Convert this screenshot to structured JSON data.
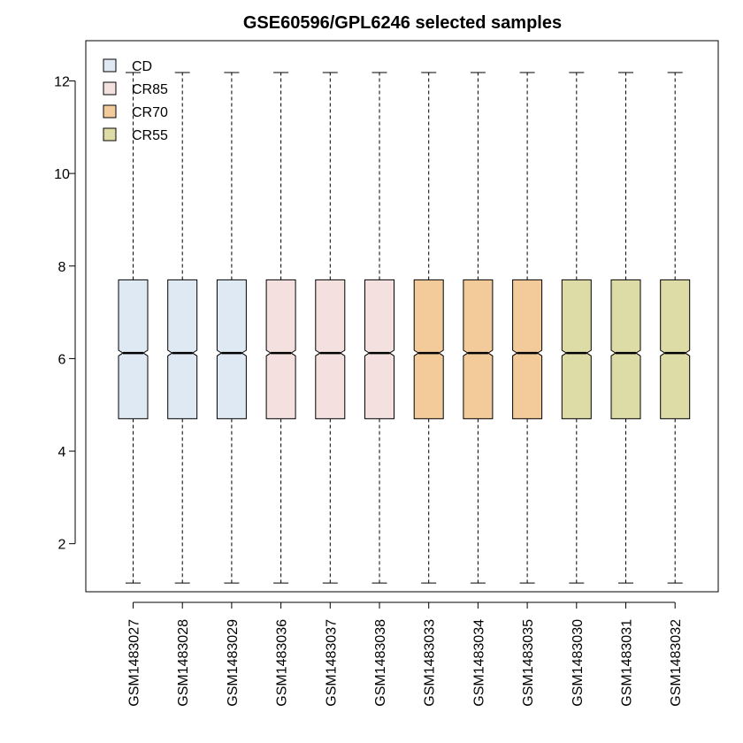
{
  "chart_data": {
    "type": "boxplot",
    "title": "GSE60596/GPL6246 selected samples",
    "xlabel": "",
    "ylabel": "",
    "ylim": [
      0.7,
      12.6
    ],
    "yticks": [
      2,
      4,
      6,
      8,
      10,
      12
    ],
    "notched": true,
    "grid": false,
    "legend_position": "top-left",
    "groups": [
      {
        "name": "CD",
        "color": "#DFE9F3"
      },
      {
        "name": "CR85",
        "color": "#F3E0DF"
      },
      {
        "name": "CR70",
        "color": "#F3CB9B"
      },
      {
        "name": "CR55",
        "color": "#DDDBA6"
      }
    ],
    "samples": [
      {
        "name": "GSM1483027",
        "group": "CD",
        "min": 1.15,
        "q1": 4.7,
        "median": 6.12,
        "q3": 7.7,
        "max": 12.18
      },
      {
        "name": "GSM1483028",
        "group": "CD",
        "min": 1.15,
        "q1": 4.7,
        "median": 6.12,
        "q3": 7.7,
        "max": 12.18
      },
      {
        "name": "GSM1483029",
        "group": "CD",
        "min": 1.15,
        "q1": 4.7,
        "median": 6.12,
        "q3": 7.7,
        "max": 12.18
      },
      {
        "name": "GSM1483036",
        "group": "CR85",
        "min": 1.15,
        "q1": 4.7,
        "median": 6.12,
        "q3": 7.7,
        "max": 12.18
      },
      {
        "name": "GSM1483037",
        "group": "CR85",
        "min": 1.15,
        "q1": 4.7,
        "median": 6.12,
        "q3": 7.7,
        "max": 12.18
      },
      {
        "name": "GSM1483038",
        "group": "CR85",
        "min": 1.15,
        "q1": 4.7,
        "median": 6.12,
        "q3": 7.7,
        "max": 12.18
      },
      {
        "name": "GSM1483033",
        "group": "CR70",
        "min": 1.15,
        "q1": 4.7,
        "median": 6.12,
        "q3": 7.7,
        "max": 12.18
      },
      {
        "name": "GSM1483034",
        "group": "CR70",
        "min": 1.15,
        "q1": 4.7,
        "median": 6.12,
        "q3": 7.7,
        "max": 12.18
      },
      {
        "name": "GSM1483035",
        "group": "CR70",
        "min": 1.15,
        "q1": 4.7,
        "median": 6.12,
        "q3": 7.7,
        "max": 12.18
      },
      {
        "name": "GSM1483030",
        "group": "CR55",
        "min": 1.15,
        "q1": 4.7,
        "median": 6.12,
        "q3": 7.7,
        "max": 12.18
      },
      {
        "name": "GSM1483031",
        "group": "CR55",
        "min": 1.15,
        "q1": 4.7,
        "median": 6.12,
        "q3": 7.7,
        "max": 12.18
      },
      {
        "name": "GSM1483032",
        "group": "CR55",
        "min": 1.15,
        "q1": 4.7,
        "median": 6.12,
        "q3": 7.7,
        "max": 12.18
      }
    ]
  }
}
